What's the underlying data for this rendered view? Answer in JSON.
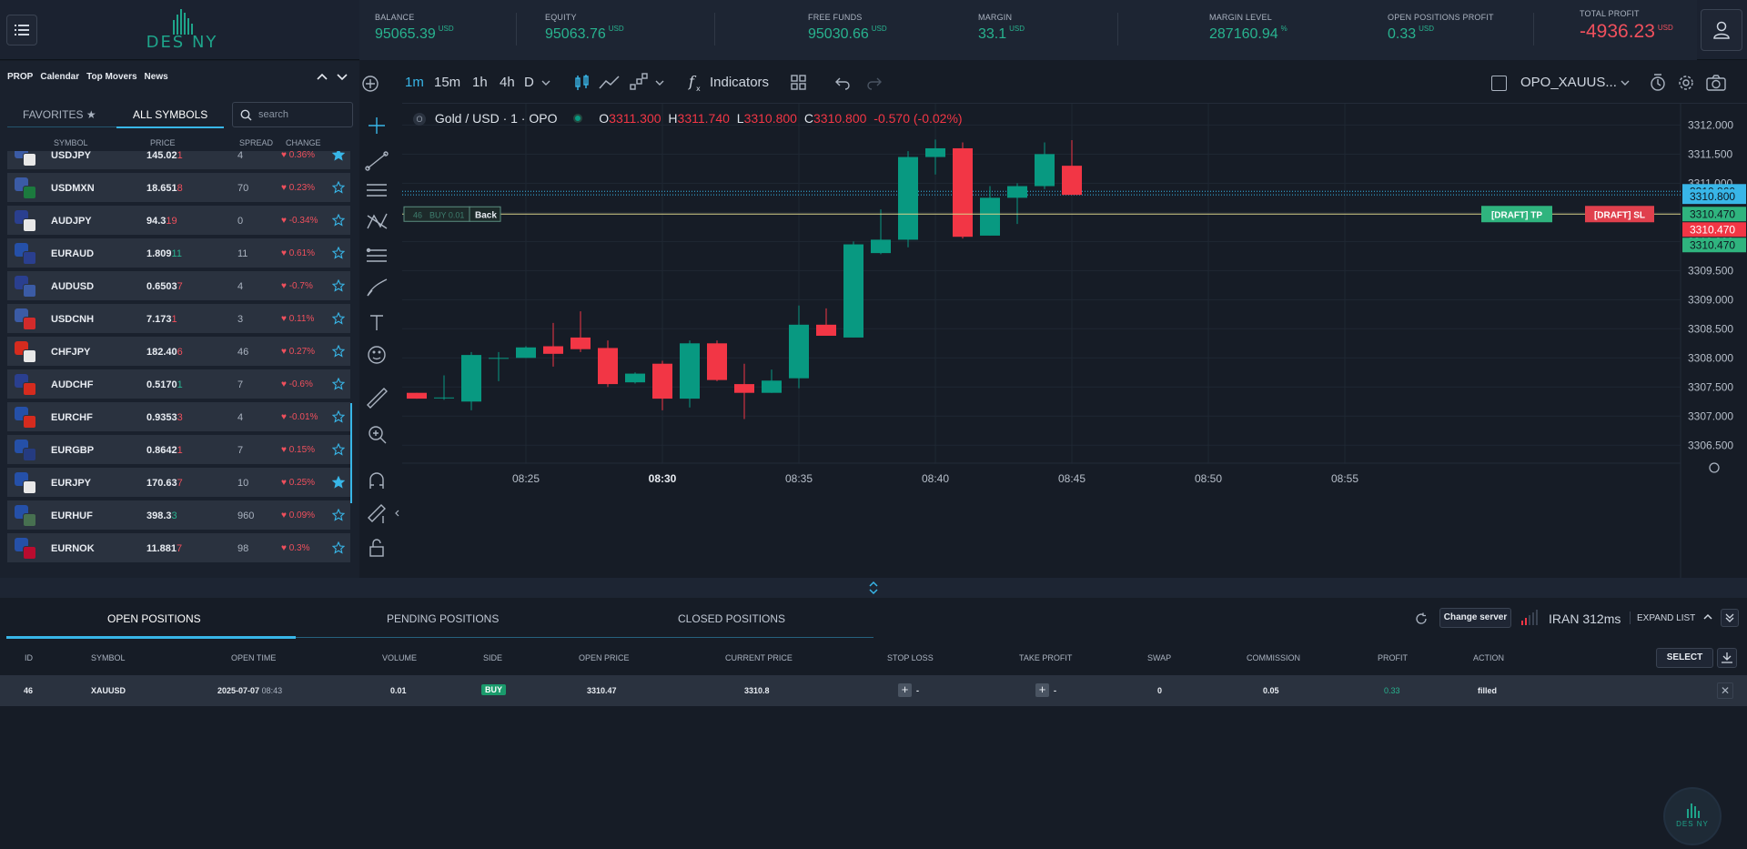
{
  "header": {
    "logo_text": "DES NY",
    "stats": [
      {
        "label": "BALANCE",
        "value": "95065.39",
        "unit": "USD"
      },
      {
        "label": "EQUITY",
        "value": "95063.76",
        "unit": "USD"
      },
      {
        "label": "FREE FUNDS",
        "value": "95030.66",
        "unit": "USD"
      },
      {
        "label": "MARGIN",
        "value": "33.1",
        "unit": "USD"
      },
      {
        "label": "MARGIN LEVEL",
        "value": "287160.94",
        "unit": "%"
      },
      {
        "label": "OPEN POSITIONS PROFIT",
        "value": "0.33",
        "unit": "USD"
      },
      {
        "label": "TOTAL PROFIT",
        "value": "-4936.23",
        "unit": "USD"
      }
    ]
  },
  "nav": {
    "links": [
      "PROP",
      "Calendar",
      "Top Movers",
      "News"
    ]
  },
  "symbols_panel": {
    "tabs": {
      "favorites": "FAVORITES",
      "all": "ALL SYMBOLS"
    },
    "search_placeholder": "search",
    "columns": {
      "symbol": "SYMBOL",
      "price": "PRICE",
      "spread": "SPREAD",
      "change": "CHANGE"
    },
    "rows": [
      {
        "symbol": "USDJPY",
        "price_main": "145.02",
        "price_last": "1",
        "spread": "4",
        "change": "0.36%",
        "fav": true
      },
      {
        "symbol": "USDMXN",
        "price_main": "18.651",
        "price_last": "8",
        "spread": "70",
        "change": "0.23%",
        "fav": false
      },
      {
        "symbol": "AUDJPY",
        "price_main": "94.3",
        "price_last": "19",
        "spread": "0",
        "change": "-0.34%",
        "fav": false
      },
      {
        "symbol": "EURAUD",
        "price_main": "1.809",
        "price_last": "11",
        "spread": "11",
        "change": "0.61%",
        "fav": false
      },
      {
        "symbol": "AUDUSD",
        "price_main": "0.6503",
        "price_last": "7",
        "spread": "4",
        "change": "-0.7%",
        "fav": false
      },
      {
        "symbol": "USDCNH",
        "price_main": "7.173",
        "price_last": "1",
        "spread": "3",
        "change": "0.11%",
        "fav": false
      },
      {
        "symbol": "CHFJPY",
        "price_main": "182.40",
        "price_last": "6",
        "spread": "46",
        "change": "0.27%",
        "fav": false
      },
      {
        "symbol": "AUDCHF",
        "price_main": "0.5170",
        "price_last": "1",
        "spread": "7",
        "change": "-0.6%",
        "fav": false
      },
      {
        "symbol": "EURCHF",
        "price_main": "0.9353",
        "price_last": "3",
        "spread": "4",
        "change": "-0.01%",
        "fav": false
      },
      {
        "symbol": "EURGBP",
        "price_main": "0.8642",
        "price_last": "1",
        "spread": "7",
        "change": "0.15%",
        "fav": false
      },
      {
        "symbol": "EURJPY",
        "price_main": "170.63",
        "price_last": "7",
        "spread": "10",
        "change": "0.25%",
        "fav": true
      },
      {
        "symbol": "EURHUF",
        "price_main": "398.3",
        "price_last": "3",
        "spread": "960",
        "change": "0.09%",
        "fav": false
      },
      {
        "symbol": "EURNOK",
        "price_main": "11.881",
        "price_last": "7",
        "spread": "98",
        "change": "0.3%",
        "fav": false
      }
    ]
  },
  "chart_toolbar": {
    "timeframes": [
      "1m",
      "15m",
      "1h",
      "4h",
      "D"
    ],
    "indicators_label": "Indicators",
    "symbol_select": "OPO_XAUUS..."
  },
  "chart_data": {
    "type": "candlestick",
    "legend": {
      "label": "O",
      "title": "Gold / USD · 1 · OPO",
      "o_label": "O",
      "o": "3311.300",
      "h_label": "H",
      "h": "3311.740",
      "l_label": "L",
      "l": "3310.800",
      "c_label": "C",
      "c": "3310.800",
      "change": "-0.570 (-0.02%)"
    },
    "y_ticks": [
      "3312.000",
      "3311.500",
      "3311.000",
      "3310.500",
      "3310.000",
      "3309.500",
      "3309.000",
      "3308.500",
      "3308.000",
      "3307.500",
      "3307.000",
      "3306.500"
    ],
    "ylim": [
      3306.3,
      3312.4
    ],
    "x_ticks": [
      "08:25",
      "08:30",
      "08:35",
      "08:40",
      "08:45",
      "08:50",
      "08:55"
    ],
    "candles": [
      {
        "t": "08:21",
        "o": 3307.4,
        "h": 3307.4,
        "l": 3307.3,
        "c": 3307.3
      },
      {
        "t": "08:22",
        "o": 3307.32,
        "h": 3307.7,
        "l": 3307.28,
        "c": 3307.32
      },
      {
        "t": "08:23",
        "o": 3307.25,
        "h": 3308.1,
        "l": 3307.1,
        "c": 3308.05
      },
      {
        "t": "08:24",
        "o": 3308.0,
        "h": 3308.1,
        "l": 3307.6,
        "c": 3308.0
      },
      {
        "t": "08:25",
        "o": 3308.0,
        "h": 3308.2,
        "l": 3308.0,
        "c": 3308.18
      },
      {
        "t": "08:26",
        "o": 3308.2,
        "h": 3308.6,
        "l": 3307.85,
        "c": 3308.07
      },
      {
        "t": "08:27",
        "o": 3308.35,
        "h": 3308.8,
        "l": 3308.1,
        "c": 3308.15
      },
      {
        "t": "08:28",
        "o": 3308.17,
        "h": 3308.3,
        "l": 3307.5,
        "c": 3307.55
      },
      {
        "t": "08:29",
        "o": 3307.58,
        "h": 3307.75,
        "l": 3307.56,
        "c": 3307.73
      },
      {
        "t": "08:30",
        "o": 3307.9,
        "h": 3307.95,
        "l": 3307.1,
        "c": 3307.3
      },
      {
        "t": "08:31",
        "o": 3307.3,
        "h": 3308.3,
        "l": 3307.15,
        "c": 3308.25
      },
      {
        "t": "08:32",
        "o": 3308.25,
        "h": 3308.3,
        "l": 3307.6,
        "c": 3307.62
      },
      {
        "t": "08:33",
        "o": 3307.55,
        "h": 3307.9,
        "l": 3306.95,
        "c": 3307.4
      },
      {
        "t": "08:34",
        "o": 3307.4,
        "h": 3307.8,
        "l": 3307.4,
        "c": 3307.61
      },
      {
        "t": "08:35",
        "o": 3307.65,
        "h": 3308.9,
        "l": 3307.48,
        "c": 3308.57
      },
      {
        "t": "08:36",
        "o": 3308.57,
        "h": 3308.85,
        "l": 3308.38,
        "c": 3308.38
      },
      {
        "t": "08:37",
        "o": 3308.35,
        "h": 3310.0,
        "l": 3308.35,
        "c": 3309.95
      },
      {
        "t": "08:38",
        "o": 3309.8,
        "h": 3310.55,
        "l": 3309.78,
        "c": 3310.03
      },
      {
        "t": "08:39",
        "o": 3310.03,
        "h": 3311.55,
        "l": 3309.9,
        "c": 3311.45
      },
      {
        "t": "08:40",
        "o": 3311.45,
        "h": 3311.75,
        "l": 3311.15,
        "c": 3311.6
      },
      {
        "t": "08:41",
        "o": 3311.6,
        "h": 3311.7,
        "l": 3310.05,
        "c": 3310.08
      },
      {
        "t": "08:42",
        "o": 3310.1,
        "h": 3310.95,
        "l": 3310.1,
        "c": 3310.75
      },
      {
        "t": "08:43",
        "o": 3310.75,
        "h": 3311.0,
        "l": 3310.3,
        "c": 3310.95
      },
      {
        "t": "08:44",
        "o": 3310.95,
        "h": 3311.7,
        "l": 3310.9,
        "c": 3311.5
      },
      {
        "t": "08:45",
        "o": 3311.3,
        "h": 3311.74,
        "l": 3310.8,
        "c": 3310.8
      }
    ],
    "price_labels": [
      "3310.860",
      "3310.800",
      "3310.470",
      "3310.470",
      "3310.470"
    ],
    "position_line": {
      "id": "46",
      "label": "BUY 0.01",
      "back": "Back",
      "price": 3310.47
    },
    "draft_tp": "[DRAFT] TP",
    "draft_sl": "[DRAFT] SL",
    "colors": {
      "up": "#089981",
      "down": "#f23645"
    }
  },
  "positions": {
    "tabs": [
      "OPEN POSITIONS",
      "PENDING POSITIONS",
      "CLOSED POSITIONS"
    ],
    "change_server": "Change server",
    "server": "IRAN 312ms",
    "expand_list": "EXPAND LIST",
    "select_label": "SELECT",
    "columns": [
      "ID",
      "SYMBOL",
      "OPEN TIME",
      "VOLUME",
      "SIDE",
      "OPEN PRICE",
      "CURRENT PRICE",
      "STOP LOSS",
      "TAKE PROFIT",
      "SWAP",
      "COMMISSION",
      "PROFIT",
      "ACTION"
    ],
    "rows": [
      {
        "id": "46",
        "symbol": "XAUUSD",
        "open_date": "2025-07-07",
        "open_time": "08:43",
        "volume": "0.01",
        "side": "BUY",
        "open_price": "3310.47",
        "current_price": "3310.8",
        "stop_loss": "-",
        "take_profit": "-",
        "swap": "0",
        "commission": "0.05",
        "profit": "0.33",
        "action": "filled"
      }
    ]
  },
  "floating_logo_text": "DES NY"
}
